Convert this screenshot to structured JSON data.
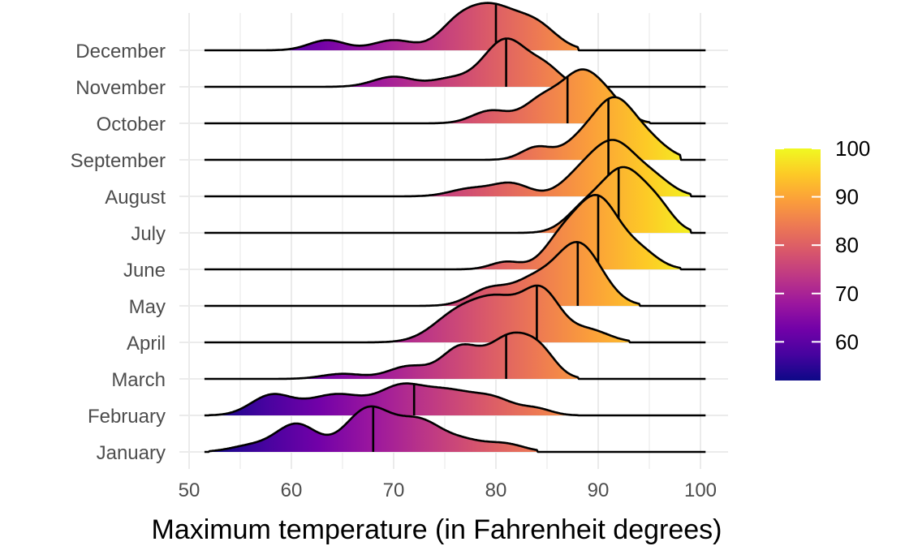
{
  "chart_data": {
    "type": "ridgeline",
    "title": "",
    "xlabel": "Maximum temperature (in Fahrenheit degrees)",
    "ylabel": "",
    "xlim": [
      50,
      100
    ],
    "x_ticks": [
      50,
      60,
      70,
      80,
      90,
      100
    ],
    "grid": true,
    "legend": {
      "type": "colorbar",
      "placement": "right",
      "range": [
        52,
        100
      ],
      "ticks": [
        60,
        70,
        80,
        90,
        100
      ]
    },
    "colors": {
      "palette": [
        "#0d0887",
        "#46039f",
        "#7201a8",
        "#9c179e",
        "#bd3786",
        "#d8576b",
        "#ed7953",
        "#fb9f3a",
        "#fdca26",
        "#f0f921"
      ],
      "line": "#000000",
      "grid": "#ebebeb",
      "text": "#4d4d4d"
    },
    "series": [
      {
        "name": "January",
        "median": 68,
        "range": [
          52,
          84
        ],
        "peaks": [
          [
            60.5,
            0.55,
            2.0
          ],
          [
            67.5,
            0.85,
            2.2
          ],
          [
            72.5,
            0.6,
            2.2
          ],
          [
            77,
            0.2,
            2.0
          ],
          [
            81,
            0.15,
            1.8
          ],
          [
            56,
            0.12,
            2.0
          ]
        ]
      },
      {
        "name": "February",
        "median": 72,
        "range": [
          52,
          88
        ],
        "peaks": [
          [
            58,
            0.38,
            2.0
          ],
          [
            64.5,
            0.42,
            3.0
          ],
          [
            70.5,
            0.4,
            2.0
          ],
          [
            75,
            0.5,
            3.0
          ],
          [
            80,
            0.25,
            2.0
          ],
          [
            84,
            0.12,
            1.5
          ]
        ]
      },
      {
        "name": "March",
        "median": 81,
        "range": [
          52,
          88
        ],
        "peaks": [
          [
            65,
            0.1,
            2.0
          ],
          [
            71.5,
            0.25,
            2.0
          ],
          [
            76.5,
            0.6,
            1.8
          ],
          [
            81.5,
            0.85,
            2.2
          ],
          [
            84.5,
            0.35,
            1.5
          ]
        ]
      },
      {
        "name": "April",
        "median": 84,
        "range": [
          52,
          93
        ],
        "peaks": [
          [
            76.5,
            0.6,
            2.5
          ],
          [
            80.5,
            0.7,
            2.2
          ],
          [
            84.5,
            0.95,
            1.8
          ],
          [
            89,
            0.25,
            2.0
          ]
        ]
      },
      {
        "name": "May",
        "median": 88,
        "range": [
          52,
          94
        ],
        "peaks": [
          [
            79.5,
            0.35,
            2.0
          ],
          [
            83.5,
            0.4,
            1.8
          ],
          [
            88,
            1.25,
            2.3
          ]
        ]
      },
      {
        "name": "June",
        "median": 90,
        "range": [
          52,
          98
        ],
        "peaks": [
          [
            81,
            0.15,
            1.5
          ],
          [
            86.5,
            0.6,
            1.8
          ],
          [
            90,
            1.35,
            2.0
          ],
          [
            94,
            0.35,
            1.8
          ]
        ]
      },
      {
        "name": "July",
        "median": 92,
        "range": [
          52,
          99
        ],
        "peaks": [
          [
            88.5,
            0.4,
            1.8
          ],
          [
            92.5,
            1.25,
            2.2
          ],
          [
            96,
            0.35,
            1.5
          ]
        ]
      },
      {
        "name": "August",
        "median": 91,
        "range": [
          52,
          99
        ],
        "peaks": [
          [
            77.5,
            0.15,
            2.0
          ],
          [
            81.5,
            0.25,
            1.8
          ],
          [
            88,
            0.3,
            1.8
          ],
          [
            91.5,
            1.05,
            2.2
          ],
          [
            95.5,
            0.3,
            1.8
          ]
        ]
      },
      {
        "name": "September",
        "median": 91,
        "range": [
          52,
          98
        ],
        "peaks": [
          [
            84,
            0.25,
            1.5
          ],
          [
            88.5,
            0.4,
            1.8
          ],
          [
            91.5,
            1.0,
            1.8
          ],
          [
            94.5,
            0.45,
            2.0
          ]
        ]
      },
      {
        "name": "October",
        "median": 87,
        "range": [
          52,
          95
        ],
        "peaks": [
          [
            79.5,
            0.25,
            1.8
          ],
          [
            84.5,
            0.45,
            1.8
          ],
          [
            88.5,
            1.0,
            2.0
          ],
          [
            91.5,
            0.25,
            1.5
          ]
        ]
      },
      {
        "name": "November",
        "median": 81,
        "range": [
          52,
          88
        ],
        "peaks": [
          [
            70,
            0.2,
            2.0
          ],
          [
            75.5,
            0.15,
            1.8
          ],
          [
            81,
            0.95,
            2.2
          ],
          [
            85,
            0.3,
            1.5
          ]
        ]
      },
      {
        "name": "December",
        "median": 80,
        "range": [
          52,
          88
        ],
        "peaks": [
          [
            63.5,
            0.2,
            1.8
          ],
          [
            70,
            0.2,
            2.0
          ],
          [
            76,
            0.35,
            1.8
          ],
          [
            79.5,
            0.85,
            2.5
          ],
          [
            84,
            0.45,
            2.0
          ]
        ]
      }
    ]
  }
}
